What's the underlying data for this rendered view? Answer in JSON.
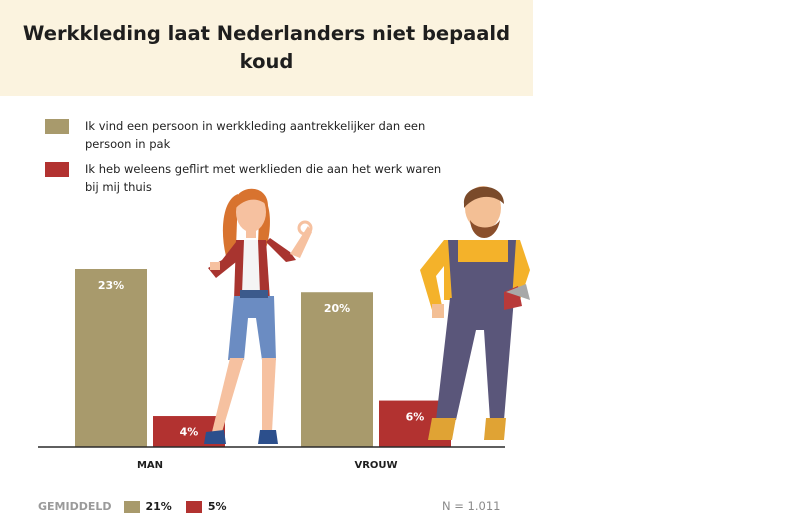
{
  "title": "Werkkleding laat Nederlanders niet bepaald koud",
  "colors": {
    "tan": "#a89a6c",
    "red": "#b23230",
    "header_bg": "#fbf3df"
  },
  "legend": [
    {
      "label": "Ik vind een persoon in werkkleding  aantrekkelijker dan een persoon in pak",
      "color": "#a89a6c"
    },
    {
      "label": "Ik heb weleens geflirt met werklieden die aan het werk waren bij mij thuis",
      "color": "#b23230"
    }
  ],
  "chart_data": {
    "type": "bar",
    "categories": [
      "MAN",
      "VROUW"
    ],
    "series": [
      {
        "name": "Ik vind een persoon in werkkleding  aantrekkelijker dan een persoon in pak",
        "values": [
          23,
          20
        ],
        "labels": [
          "23%",
          "20%"
        ],
        "color": "#a89a6c"
      },
      {
        "name": "Ik heb weleens geflirt met werklieden die aan het werk waren bij mij thuis",
        "values": [
          4,
          6
        ],
        "labels": [
          "4%",
          "6%"
        ],
        "color": "#b23230"
      }
    ],
    "ylim": [
      0,
      25
    ],
    "grid": false,
    "legend_position": "top-left"
  },
  "footer": {
    "avg_label": "GEMIDDELD",
    "avg_values": [
      {
        "label": "21%",
        "color": "#a89a6c"
      },
      {
        "label": "5%",
        "color": "#b23230"
      }
    ],
    "n_label": "N = 1.011"
  }
}
